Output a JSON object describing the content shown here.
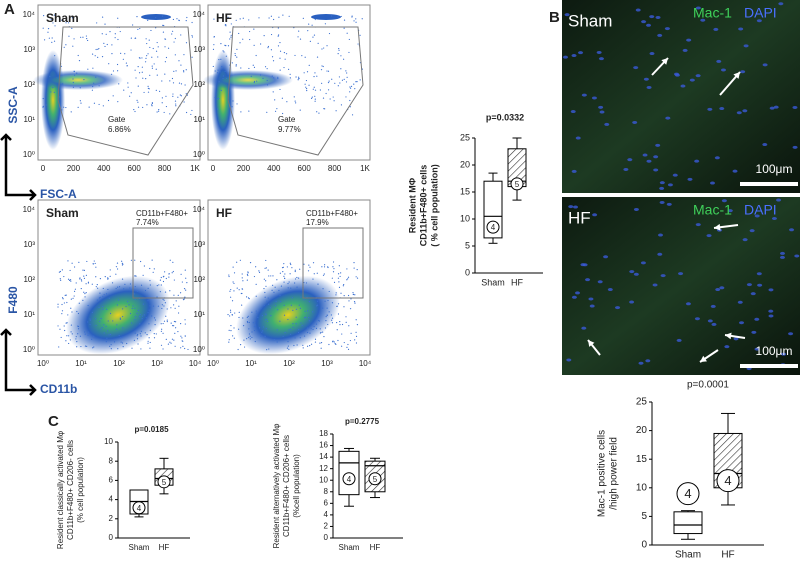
{
  "figure": {
    "panel_labels": [
      "A",
      "B",
      "C"
    ],
    "flow": {
      "groups": [
        "Sham",
        "HF"
      ],
      "top": {
        "ylabel": "SSC-A",
        "xlabel": "FSC-A",
        "yticks": [
          "10⁰",
          "10¹",
          "10²",
          "10³",
          "10⁴"
        ],
        "xticks": [
          "0",
          "200",
          "400",
          "600",
          "800",
          "1K"
        ],
        "gate_name": "Gate",
        "gate_values": [
          "6.86%",
          "9.77%"
        ]
      },
      "bottom": {
        "ylabel": "F480",
        "xlabel": "CD11b",
        "yticks": [
          "10⁰",
          "10¹",
          "10²",
          "10³",
          "10⁴"
        ],
        "xticks": [
          "10⁰",
          "10¹",
          "10²",
          "10³",
          "10⁴"
        ],
        "gate_name": "CD11b+F480+",
        "gate_values": [
          "7.74%",
          "17.9%"
        ]
      }
    },
    "micrographs": {
      "groups": [
        "Sham",
        "HF"
      ],
      "stain": "Mac-1",
      "counterstain": "DAPI",
      "scale": "100μm"
    }
  },
  "chart_data": [
    {
      "type": "box",
      "title": "p=0.0332",
      "ylabel": [
        "Resident MΦ",
        "CD11b+F480+ cells",
        "( % cell population)"
      ],
      "categories": [
        "Sham",
        "HF"
      ],
      "min": [
        5.5,
        13.5
      ],
      "q1": [
        6.5,
        16
      ],
      "median": [
        10.5,
        17
      ],
      "q3": [
        17,
        23
      ],
      "max": [
        18.5,
        25
      ],
      "n_labels": [
        "4",
        "5"
      ],
      "fill": [
        "none",
        "hatch"
      ],
      "ylim": [
        0,
        25
      ],
      "yticks": [
        0,
        5,
        10,
        15,
        20,
        25
      ]
    },
    {
      "type": "box",
      "title": "p=0.0185",
      "ylabel": [
        "Resident classically activated Mφ",
        "CD11b+F480+ CD206- cells",
        "(% cell population)"
      ],
      "categories": [
        "Sham",
        "HF"
      ],
      "min": [
        2.2,
        4.6
      ],
      "q1": [
        2.5,
        5.5
      ],
      "median": [
        3.8,
        6.2
      ],
      "q3": [
        5,
        7.2
      ],
      "max": [
        5,
        8.3
      ],
      "n_labels": [
        "4",
        "5"
      ],
      "fill": [
        "none",
        "hatch"
      ],
      "ylim": [
        0,
        10
      ],
      "yticks": [
        0,
        2,
        4,
        6,
        8,
        10
      ]
    },
    {
      "type": "box",
      "title": "p=0.2775",
      "ylabel": [
        "Resident alternatively activated Mφ",
        "CD11b+F480+ CD206+ cells",
        "(%cell population)"
      ],
      "categories": [
        "Sham",
        "HF"
      ],
      "min": [
        5.5,
        7
      ],
      "q1": [
        7.5,
        8
      ],
      "median": [
        13,
        12.5
      ],
      "q3": [
        15,
        13.3
      ],
      "max": [
        15.5,
        13.8
      ],
      "n_labels": [
        "4",
        "5"
      ],
      "fill": [
        "none",
        "hatch"
      ],
      "ylim": [
        0,
        18
      ],
      "yticks": [
        0,
        2,
        4,
        6,
        8,
        10,
        12,
        14,
        16,
        18
      ]
    },
    {
      "type": "box",
      "title": "p=0.0001",
      "ylabel": [
        "Mac-1 positive cells",
        "/high power field"
      ],
      "categories": [
        "Sham",
        "HF"
      ],
      "min": [
        1,
        7
      ],
      "q1": [
        2,
        10
      ],
      "median": [
        3.5,
        12.5
      ],
      "q3": [
        5.8,
        19.5
      ],
      "max": [
        6,
        23
      ],
      "n_labels": [
        "4",
        "4"
      ],
      "fill": [
        "none",
        "hatch"
      ],
      "ylim": [
        0,
        25
      ],
      "yticks": [
        0,
        5,
        10,
        15,
        20,
        25
      ]
    }
  ]
}
